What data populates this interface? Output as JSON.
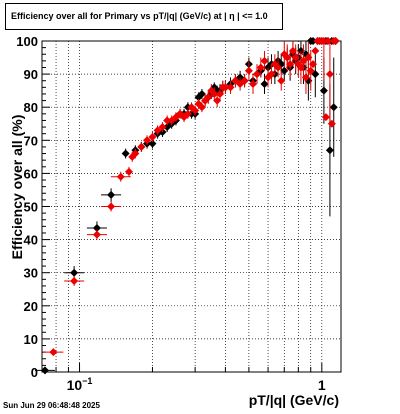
{
  "page": {
    "title": "Efficiency over all for Primary vs pT/|q| (GeV/c) at |  η  | <= 1.0",
    "timestamp": "Sun Jun 29 06:48:48 2025"
  },
  "chart_data": {
    "type": "scatter",
    "title": "Efficiency over all for Primary vs pT/|q| (GeV/c) at |  η  | <= 1.0",
    "xlabel": "pT/|q| (GeV/c)",
    "ylabel": "Efficiency over all (%)",
    "x_scale": "log",
    "xlim": [
      0.07,
      1.2
    ],
    "ylim": [
      0,
      100
    ],
    "grid": true,
    "legend": "none",
    "y_ticks": [
      0,
      10,
      20,
      30,
      40,
      50,
      60,
      70,
      80,
      90,
      100
    ],
    "x_tick_labels": [
      {
        "value": 0.1,
        "label": "10",
        "exp": "−1"
      },
      {
        "value": 1,
        "label": "1",
        "exp": ""
      }
    ],
    "colors": {
      "series_black": "#000000",
      "series_red": "#ee0000"
    },
    "series": [
      {
        "color": "#000000",
        "x": [
          0.072,
          0.095,
          0.118,
          0.135,
          0.155,
          0.17,
          0.18,
          0.19,
          0.2,
          0.21,
          0.22,
          0.23,
          0.24,
          0.25,
          0.26,
          0.27,
          0.28,
          0.29,
          0.3,
          0.31,
          0.32,
          0.33,
          0.34,
          0.35,
          0.36,
          0.37,
          0.38,
          0.39,
          0.4,
          0.42,
          0.44,
          0.46,
          0.48,
          0.5,
          0.52,
          0.54,
          0.56,
          0.58,
          0.6,
          0.62,
          0.64,
          0.66,
          0.68,
          0.7,
          0.72,
          0.74,
          0.76,
          0.78,
          0.8,
          0.82,
          0.84,
          0.86,
          0.88,
          0.9,
          0.92,
          0.94,
          0.96,
          0.98,
          1.0,
          1.02,
          1.04,
          1.06,
          1.08,
          1.1,
          1.12,
          1.14
        ],
        "y": [
          0.5,
          30,
          43.5,
          53.5,
          66,
          67,
          68,
          69,
          69,
          72,
          72.5,
          74,
          75,
          76,
          78,
          78,
          80,
          78,
          78,
          83,
          84,
          82,
          83,
          84,
          86,
          85,
          85,
          86,
          86,
          87,
          88,
          89,
          88,
          93,
          88,
          90,
          91,
          87,
          92,
          93,
          90,
          94,
          93,
          91,
          95,
          92,
          96,
          94,
          95,
          97,
          92,
          96,
          88,
          100,
          100,
          90,
          100,
          100,
          100,
          85,
          100,
          100,
          67,
          100,
          80,
          100
        ],
        "yerr": [
          0.5,
          2,
          2,
          2,
          1.5,
          1.5,
          1.5,
          1.5,
          1.5,
          1.5,
          1.5,
          1.5,
          1.5,
          1.5,
          1.5,
          1.5,
          1.5,
          1.5,
          1.5,
          1.5,
          1.5,
          1.5,
          1.5,
          1.5,
          1.5,
          1.5,
          2,
          2,
          2,
          2,
          2,
          2,
          2,
          2,
          2,
          2,
          2,
          3,
          3,
          3,
          3,
          3,
          3,
          3,
          3,
          4,
          4,
          4,
          4,
          4,
          5,
          5,
          6,
          0,
          0,
          7,
          0,
          0,
          0,
          10,
          0,
          0,
          20,
          0,
          15,
          0
        ]
      },
      {
        "color": "#ee0000",
        "x": [
          0.078,
          0.095,
          0.118,
          0.135,
          0.148,
          0.16,
          0.165,
          0.17,
          0.18,
          0.19,
          0.2,
          0.21,
          0.22,
          0.23,
          0.24,
          0.25,
          0.26,
          0.27,
          0.28,
          0.29,
          0.3,
          0.31,
          0.32,
          0.33,
          0.34,
          0.35,
          0.36,
          0.37,
          0.38,
          0.39,
          0.4,
          0.42,
          0.44,
          0.46,
          0.48,
          0.5,
          0.52,
          0.54,
          0.56,
          0.58,
          0.6,
          0.62,
          0.64,
          0.66,
          0.68,
          0.7,
          0.72,
          0.74,
          0.76,
          0.78,
          0.8,
          0.82,
          0.84,
          0.86,
          0.88,
          0.9,
          0.92,
          0.94,
          0.96,
          0.98,
          1.0,
          1.02,
          1.04,
          1.06,
          1.08,
          1.1,
          1.12,
          1.14
        ],
        "y": [
          6,
          27.5,
          41.5,
          50,
          59,
          60.5,
          65,
          66,
          68,
          70,
          71,
          73,
          74,
          76,
          76,
          77,
          78,
          77,
          78,
          80,
          79,
          81,
          80,
          82,
          83,
          85,
          84,
          82,
          84,
          86,
          86,
          86,
          88,
          87,
          88,
          91,
          87,
          90,
          92,
          94,
          89,
          90,
          93,
          92,
          88,
          96,
          95,
          93,
          97,
          95,
          93,
          92,
          94,
          89,
          95,
          91,
          93,
          97,
          100,
          100,
          100,
          100,
          77,
          100,
          90,
          75,
          100,
          100
        ],
        "yerr": [
          0.8,
          1.5,
          1.5,
          1.5,
          1.5,
          1.5,
          1.5,
          1.5,
          1.5,
          1.5,
          1.5,
          1.5,
          1.5,
          1.5,
          1.5,
          1.5,
          1.5,
          1.5,
          1.5,
          1.5,
          1.5,
          1.5,
          1.5,
          2,
          2,
          2,
          2,
          2,
          2,
          2,
          2,
          2,
          2,
          2,
          2,
          3,
          3,
          3,
          3,
          3,
          3,
          3,
          3,
          3,
          3,
          4,
          4,
          4,
          4,
          4,
          4,
          5,
          5,
          5,
          6,
          6,
          0,
          0,
          0,
          0,
          0,
          12,
          0,
          0,
          15,
          0,
          0,
          0
        ]
      }
    ]
  }
}
